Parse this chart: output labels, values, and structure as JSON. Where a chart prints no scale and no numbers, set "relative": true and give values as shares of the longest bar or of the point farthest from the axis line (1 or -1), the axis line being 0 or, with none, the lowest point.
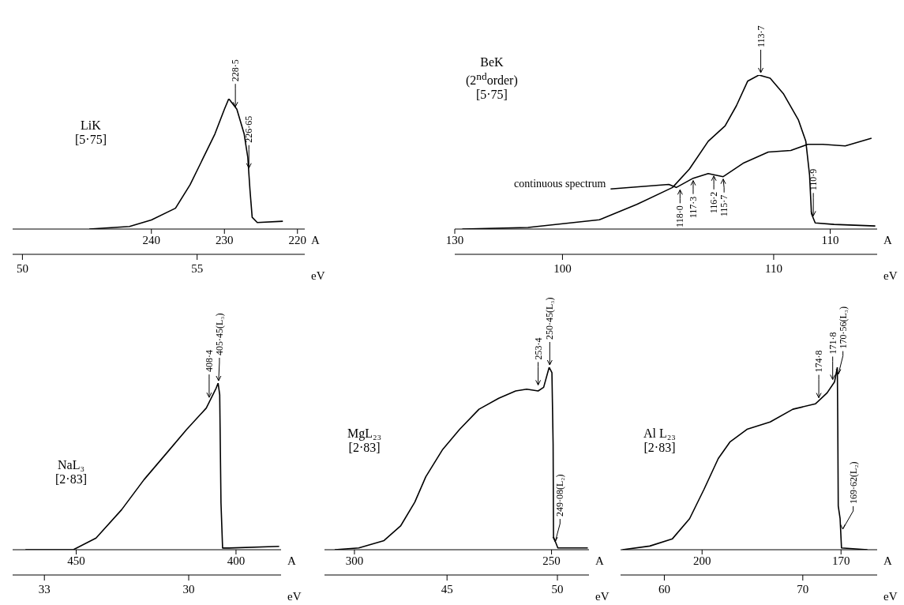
{
  "chart_data": [
    {
      "type": "line",
      "title": "LiK",
      "subtitle": "[5·75]",
      "relative": true,
      "xlabel": "A",
      "x2label": "eV",
      "xlim": [
        259,
        219
      ],
      "xticks": [
        240,
        230,
        220
      ],
      "x2lim": [
        49.72,
        58.08
      ],
      "x2ticks": [
        50,
        55
      ],
      "series": [
        {
          "color": "#000000",
          "x": [
            248.5,
            243,
            240,
            236.7,
            234.7,
            233.3,
            231.3,
            230,
            229.4,
            228.3,
            227.3,
            226.8,
            226.5,
            226.2,
            225.5,
            222
          ],
          "values": [
            0,
            0.02,
            0.07,
            0.16,
            0.34,
            0.5,
            0.73,
            0.92,
            1,
            0.92,
            0.73,
            0.55,
            0.3,
            0.09,
            0.05,
            0.06
          ]
        }
      ],
      "annotations": [
        {
          "text": "228·5",
          "x": 228.5,
          "y": 0.92
        },
        {
          "text": "226·65",
          "x": 226.65,
          "y": 0.45
        }
      ]
    },
    {
      "type": "line",
      "title": "BeK",
      "subtitle": "(2$^{nd}$order)",
      "relative": true,
      "xlabel": "A",
      "x2label": "eV",
      "xlim": [
        130,
        107.5
      ],
      "xticks": [
        130,
        110
      ],
      "x2lim": [
        94.9,
        114.9
      ],
      "x2ticks": [
        100,
        110
      ],
      "series": [
        {
          "color": "#000000",
          "x": [
            129.6,
            126.1,
            122.3,
            120.3,
            118.4,
            117.5,
            116.5,
            115.6,
            115,
            114.4,
            113.8,
            113.2,
            112.5,
            111.7,
            111.3,
            111.1,
            111,
            110.8,
            109.8,
            107.6
          ],
          "values": [
            0,
            0.01,
            0.06,
            0.16,
            0.27,
            0.39,
            0.57,
            0.67,
            0.8,
            0.96,
            1,
            0.98,
            0.88,
            0.71,
            0.57,
            0.35,
            0.1,
            0.04,
            0.03,
            0.02
          ]
        },
        {
          "name": "continuous spectrum",
          "color": "#000000",
          "x": [
            121.7,
            118.6,
            118.2,
            117.3,
            116.5,
            115.7,
            114.6,
            113.3,
            112.1,
            111.2,
            110.4,
            109.2,
            107.8
          ],
          "values": [
            0.26,
            0.29,
            0.27,
            0.33,
            0.36,
            0.34,
            0.43,
            0.5,
            0.51,
            0.55,
            0.55,
            0.54,
            0.59
          ]
        }
      ],
      "annotations": [
        "[5·75]",
        {
          "text": "113·7",
          "x": 113.7,
          "y": 1
        },
        {
          "text": "110·9",
          "x": 110.9,
          "y": 0.07
        },
        {
          "text": "118·0",
          "x": 118,
          "y": 0.27
        },
        {
          "text": "117·3",
          "x": 117.3,
          "y": 0.33
        },
        {
          "text": "116·2",
          "x": 116.2,
          "y": 0.36
        },
        {
          "text": "115·7",
          "x": 115.7,
          "y": 0.34
        }
      ]
    },
    {
      "type": "line",
      "title": "NaL₃",
      "subtitle": "[2·83]",
      "relative": true,
      "xlabel": "A",
      "x2label": "eV",
      "xlim": [
        469.9,
        385.9
      ],
      "xticks": [
        450,
        400
      ],
      "x2lim": [
        33.66,
        28.08
      ],
      "x2ticks": [
        33,
        30
      ],
      "series": [
        {
          "color": "#000000",
          "x": [
            465.9,
            450.9,
            443.8,
            435.8,
            428.8,
            421.7,
            415.5,
            409.3,
            406.2,
            405.6,
            405.1,
            404.7,
            404.2,
            402.2,
            386.5
          ],
          "values": [
            0,
            0,
            0.07,
            0.24,
            0.42,
            0.58,
            0.72,
            0.85,
            0.97,
            1,
            0.93,
            0.28,
            0.01,
            0.01,
            0.02
          ]
        }
      ],
      "annotations": [
        {
          "text": "408·4",
          "x": 408.4,
          "y": 0.9
        },
        {
          "text": "405·45(L₃)",
          "x": 405.45,
          "y": 1
        }
      ]
    },
    {
      "type": "line",
      "title": "MgL₂₃",
      "subtitle": "[2·83]",
      "relative": true,
      "xlabel": "A",
      "x2label": "eV",
      "xlim": [
        307.6,
        240.5
      ],
      "xticks": [
        300,
        250
      ],
      "x2lim": [
        39.45,
        51.43
      ],
      "x2ticks": [
        45,
        50
      ],
      "series": [
        {
          "color": "#000000",
          "x": [
            305,
            298.9,
            292.5,
            288.3,
            284.7,
            281.9,
            277.6,
            273.3,
            268.4,
            263.4,
            259.1,
            256.3,
            253.4,
            252,
            250.6,
            249.9,
            249.6,
            249.5,
            248.4,
            240.8
          ],
          "values": [
            0,
            0.01,
            0.05,
            0.13,
            0.26,
            0.4,
            0.55,
            0.66,
            0.77,
            0.83,
            0.87,
            0.88,
            0.87,
            0.89,
            1,
            0.97,
            0.58,
            0.07,
            0.01,
            0.01
          ]
        }
      ],
      "annotations": [
        {
          "text": "253·4",
          "x": 253.4,
          "y": 0.89
        },
        {
          "text": "250·45(L₃)",
          "x": 250.45,
          "y": 1
        },
        {
          "text": "249·08(L₂)",
          "x": 249.08,
          "y": 0.03
        }
      ]
    },
    {
      "type": "line",
      "title": "Al L₂₃",
      "subtitle": "[2·83]",
      "relative": true,
      "xlabel": "A",
      "x2label": "eV",
      "xlim": [
        217.6,
        162.2
      ],
      "xticks": [
        200,
        170
      ],
      "x2lim": [
        56.84,
        75.37
      ],
      "x2ticks": [
        60,
        70
      ],
      "series": [
        {
          "color": "#000000",
          "x": [
            217.2,
            211.3,
            206.4,
            202.7,
            199.6,
            196.5,
            194,
            190.3,
            185.3,
            180.4,
            175.5,
            173,
            171.4,
            170.8,
            170.7,
            170.6,
            170.2,
            169.9,
            164.3
          ],
          "values": [
            0,
            0.02,
            0.06,
            0.17,
            0.33,
            0.5,
            0.59,
            0.66,
            0.7,
            0.77,
            0.8,
            0.86,
            0.92,
            1,
            0.68,
            0.24,
            0.17,
            0.01,
            0
          ]
        }
      ],
      "annotations": [
        {
          "text": "174·8",
          "x": 174.8,
          "y": 0.82
        },
        {
          "text": "171·8",
          "x": 171.8,
          "y": 0.92
        },
        {
          "text": "170·56(L₃)",
          "x": 170.56,
          "y": 0.95
        },
        {
          "text": "169·62(L₂)",
          "x": 169.62,
          "y": 0.1
        }
      ]
    }
  ]
}
